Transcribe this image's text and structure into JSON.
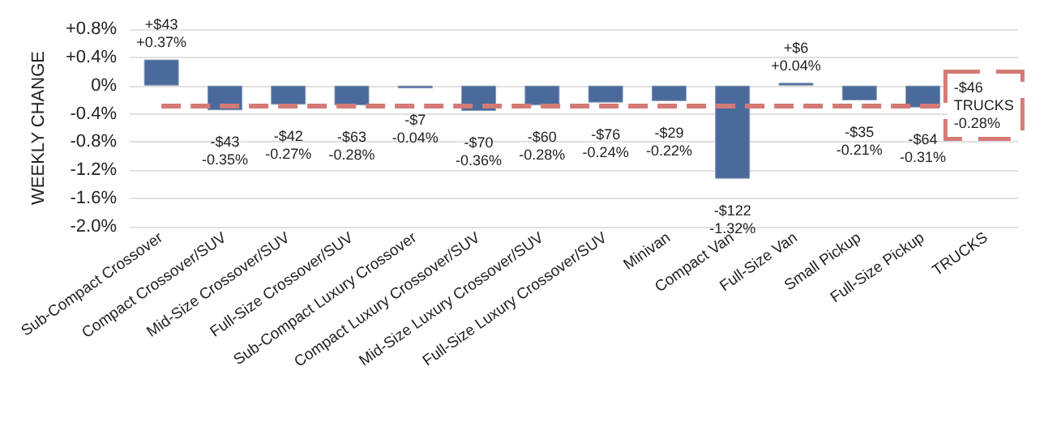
{
  "chart_data": {
    "type": "bar",
    "ylabel": "WEEKLY CHANGE",
    "categories": [
      "Sub-Compact Crossover",
      "Compact Crossover/SUV",
      "Mid-Size Crossover/SUV",
      "Full-Size Crossover/SUV",
      "Sub-Compact Luxury Crossover",
      "Compact Luxury Crossover/SUV",
      "Mid-Size Luxury Crossover/SUV",
      "Full-Size Luxury Crossover/SUV",
      "Minivan",
      "Compact Van",
      "Full-Size Van",
      "Small Pickup",
      "Full-Size Pickup",
      "TRUCKS"
    ],
    "values": [
      0.37,
      -0.35,
      -0.27,
      -0.28,
      -0.04,
      -0.36,
      -0.28,
      -0.24,
      -0.22,
      -1.32,
      0.04,
      -0.21,
      -0.31,
      null
    ],
    "value_labels": [
      "+$43\n+0.37%",
      "-$43\n-0.35%",
      "-$42\n-0.27%",
      "-$63\n-0.28%",
      "-$7\n-0.04%",
      "-$70\n-0.36%",
      "-$60\n-0.28%",
      "-$76\n-0.24%",
      "-$29\n-0.22%",
      "-$122\n-1.32%",
      "+$6\n+0.04%",
      "-$35\n-0.21%",
      "-$64\n-0.31%",
      null
    ],
    "color": "#4a6a9c",
    "ylim": [
      -2.0,
      0.8
    ],
    "yticks": [
      {
        "value": 0.8,
        "label": "+0.8%"
      },
      {
        "value": 0.4,
        "label": "+0.4%"
      },
      {
        "value": 0,
        "label": "0%"
      },
      {
        "value": -0.4,
        "label": "-0.4%"
      },
      {
        "value": -0.8,
        "label": "-0.8%"
      },
      {
        "value": -1.2,
        "label": "-1.2%"
      },
      {
        "value": -1.6,
        "label": "-1.6%"
      },
      {
        "value": -2.0,
        "label": "-2.0%"
      }
    ],
    "grid": "y",
    "ref_lines": [
      {
        "axis": "y",
        "value": -0.28,
        "label": "-$46\nTRUCKS\n-0.28%",
        "color": "#d47a76",
        "line_style": "dashed"
      }
    ]
  }
}
